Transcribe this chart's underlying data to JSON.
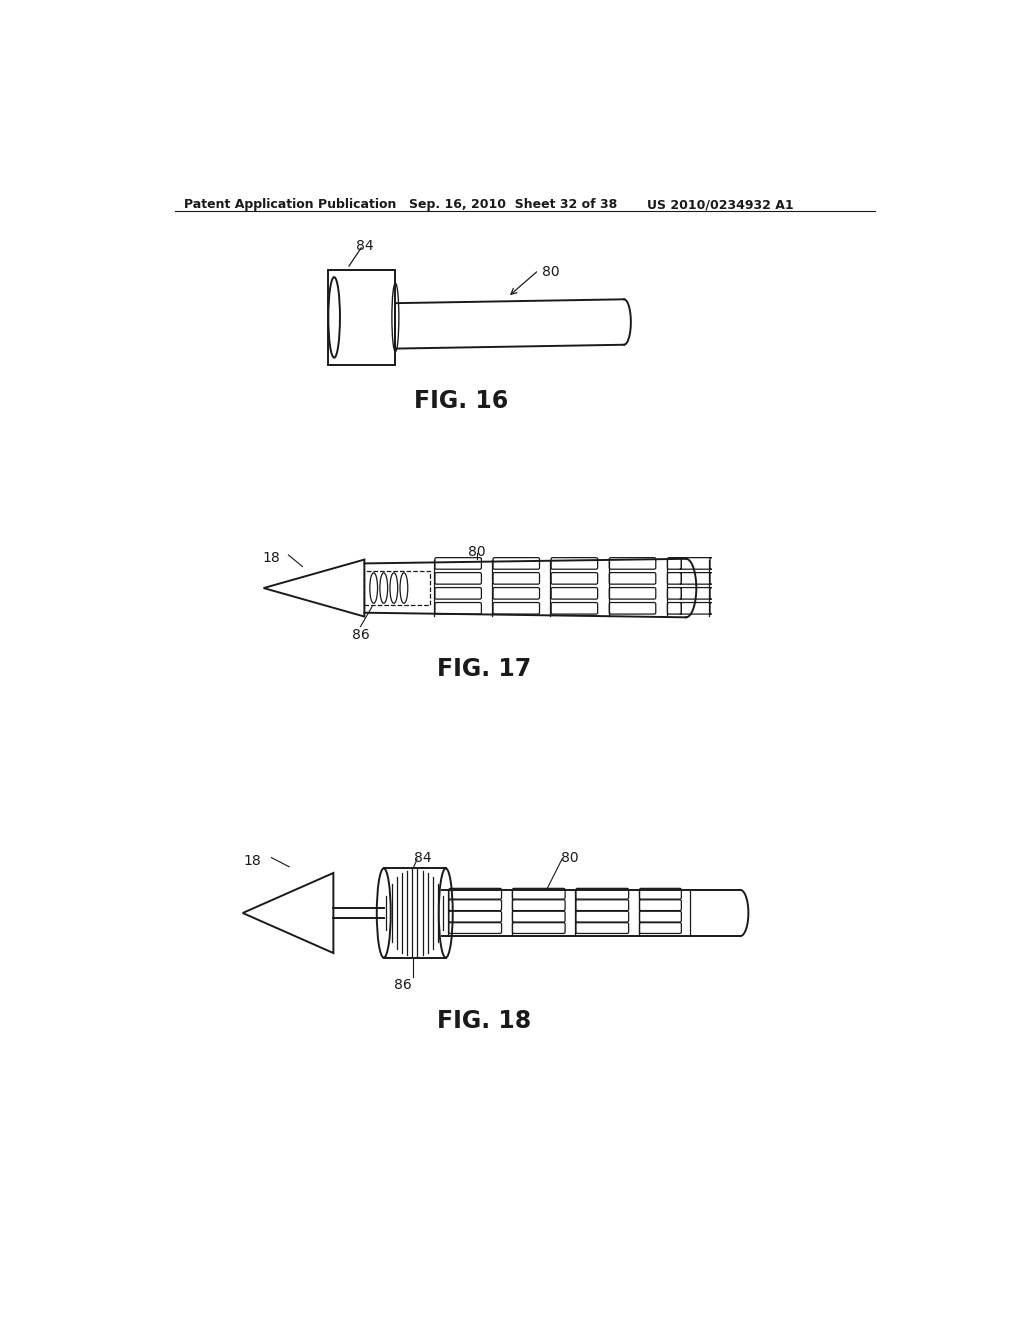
{
  "bg_color": "#ffffff",
  "line_color": "#1a1a1a",
  "header_left": "Patent Application Publication",
  "header_mid": "Sep. 16, 2010  Sheet 32 of 38",
  "header_right": "US 2010/0234932 A1",
  "fig16_caption": "FIG. 16",
  "fig17_caption": "FIG. 17",
  "fig18_caption": "FIG. 18"
}
